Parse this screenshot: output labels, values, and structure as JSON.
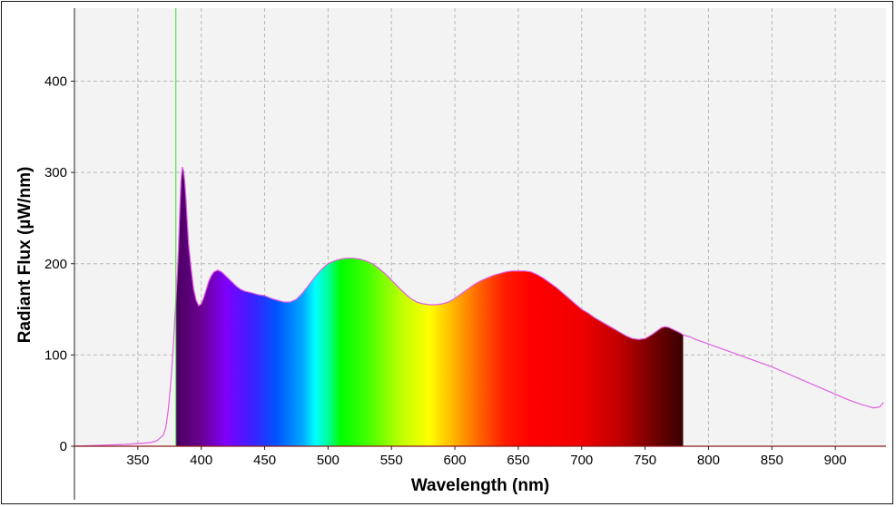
{
  "chart_data": {
    "type": "area",
    "xlabel": "Wavelength (nm)",
    "ylabel": "Radiant Flux (µW/nm)",
    "xlim": [
      300,
      940
    ],
    "ylim": [
      0,
      480
    ],
    "xticks": [
      350,
      400,
      450,
      500,
      550,
      600,
      650,
      700,
      750,
      800,
      850,
      900
    ],
    "yticks": [
      0,
      100,
      200,
      300,
      400
    ],
    "grid": true,
    "marker_line_x": 380,
    "visible_range": [
      380,
      780
    ],
    "series": [
      {
        "x": [
          300,
          320,
          340,
          350,
          360,
          365,
          370,
          372,
          374,
          376,
          378,
          379,
          380,
          381,
          382,
          383,
          384,
          385,
          386,
          387,
          388,
          389,
          390,
          392,
          394,
          396,
          398,
          400,
          402,
          404,
          406,
          408,
          410,
          413,
          416,
          419,
          422,
          425,
          428,
          431,
          434,
          437,
          440,
          445,
          450,
          455,
          460,
          465,
          470,
          475,
          480,
          485,
          490,
          495,
          500,
          505,
          510,
          515,
          520,
          525,
          530,
          535,
          540,
          545,
          550,
          555,
          560,
          565,
          570,
          575,
          580,
          585,
          590,
          595,
          600,
          605,
          610,
          615,
          620,
          625,
          630,
          635,
          640,
          645,
          650,
          655,
          660,
          665,
          670,
          675,
          680,
          685,
          690,
          695,
          700,
          705,
          710,
          715,
          720,
          725,
          730,
          735,
          740,
          745,
          750,
          755,
          760,
          763,
          766,
          769,
          772,
          775,
          778,
          780,
          785,
          790,
          800,
          810,
          820,
          830,
          840,
          850,
          860,
          870,
          880,
          890,
          900,
          910,
          920,
          925,
          930,
          935,
          938
        ],
        "y": [
          0,
          1,
          2,
          3,
          4,
          6,
          12,
          20,
          40,
          70,
          110,
          135,
          160,
          185,
          215,
          255,
          290,
          306,
          302,
          290,
          270,
          245,
          222,
          195,
          172,
          160,
          154,
          156,
          163,
          172,
          181,
          187,
          191,
          193,
          191,
          187,
          183,
          179,
          175,
          172,
          170,
          169,
          168,
          166,
          165,
          162,
          160,
          158,
          158,
          161,
          168,
          177,
          186,
          194,
          200,
          203,
          205,
          206,
          206,
          205,
          203,
          200,
          195,
          189,
          182,
          175,
          168,
          162,
          158,
          156,
          155,
          155,
          156,
          158,
          162,
          167,
          172,
          177,
          181,
          184,
          187,
          189,
          191,
          192,
          192,
          192,
          191,
          188,
          184,
          179,
          174,
          168,
          162,
          156,
          150,
          146,
          141,
          137,
          133,
          129,
          125,
          121,
          118,
          117,
          118,
          122,
          127,
          130,
          131,
          130,
          128,
          126,
          124,
          122,
          120,
          117,
          112,
          107,
          102,
          97,
          92,
          87,
          81,
          75,
          69,
          63,
          57,
          51,
          46,
          44,
          42,
          43,
          48
        ]
      }
    ]
  }
}
